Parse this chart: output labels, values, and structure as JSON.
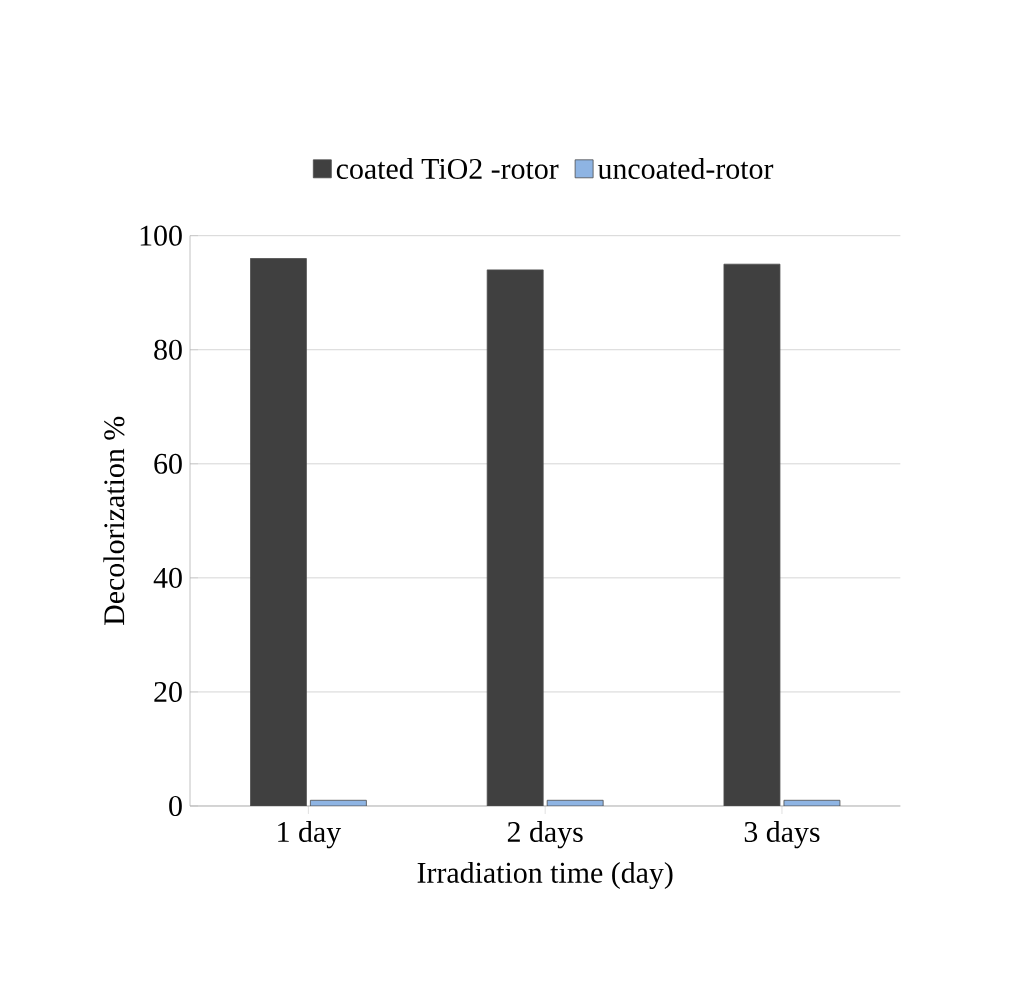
{
  "chart_data": {
    "type": "bar",
    "xlabel": "Irradiation time (day)",
    "ylabel": "Decolorization %",
    "categories": [
      "1 day",
      "2 days",
      "3 days"
    ],
    "series": [
      {
        "name": "coated TiO2 -rotor",
        "color": "#404040",
        "values": [
          96,
          94,
          95
        ]
      },
      {
        "name": "uncoated-rotor",
        "color": "#8eb4e3",
        "values": [
          1,
          1,
          1
        ]
      }
    ],
    "ylim": [
      0,
      100
    ],
    "yticks": [
      0,
      20,
      40,
      60,
      80,
      100
    ],
    "grid": "y",
    "legend": "top"
  }
}
